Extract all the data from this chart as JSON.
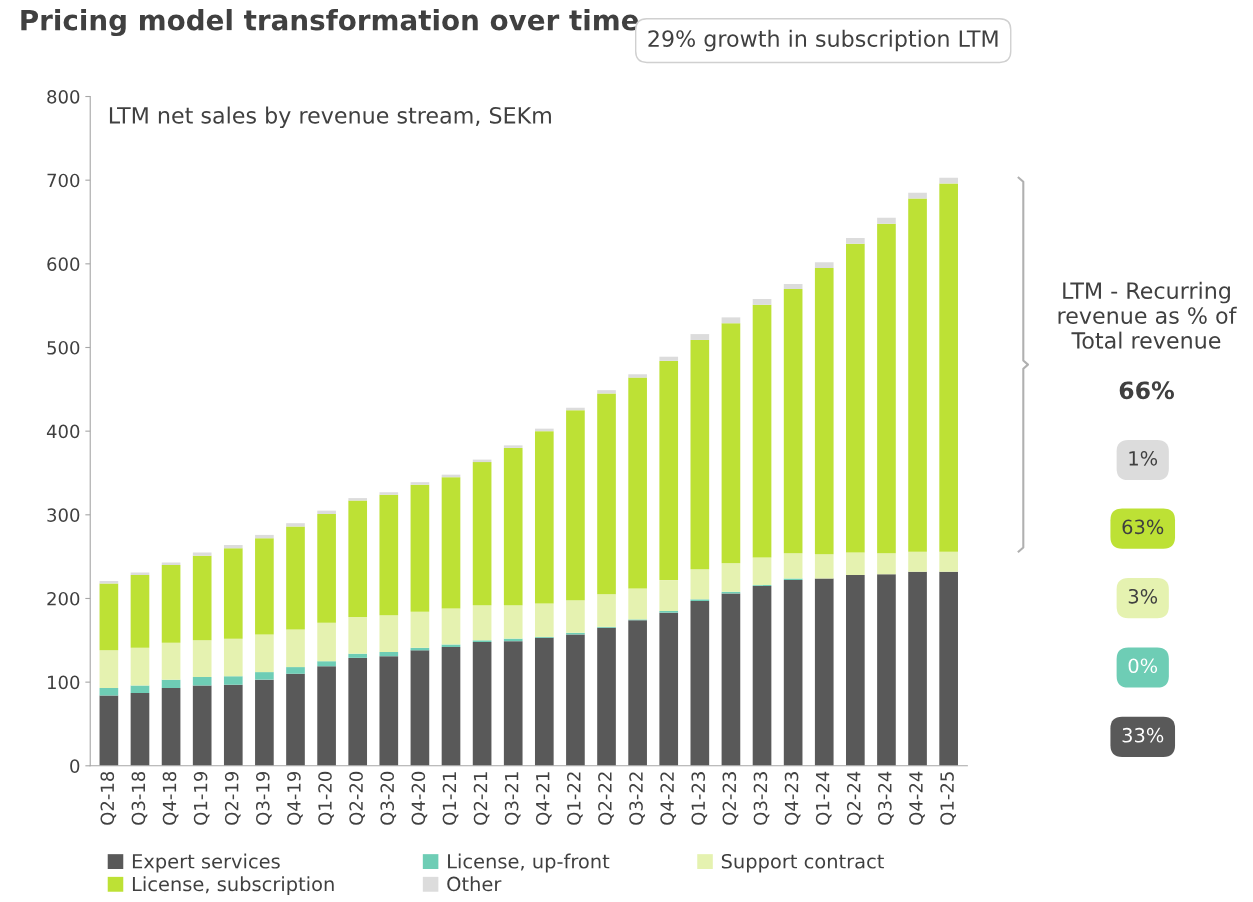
{
  "chart_data": {
    "type": "bar",
    "stacked": true,
    "title": "Pricing model transformation over time",
    "subtitle": "LTM net sales by revenue stream, SEKm",
    "categories": [
      "Q2-18",
      "Q3-18",
      "Q4-18",
      "Q1-19",
      "Q2-19",
      "Q3-19",
      "Q4-19",
      "Q1-20",
      "Q2-20",
      "Q3-20",
      "Q4-20",
      "Q1-21",
      "Q2-21",
      "Q3-21",
      "Q4-21",
      "Q1-22",
      "Q2-22",
      "Q3-22",
      "Q4-22",
      "Q1-23",
      "Q2-23",
      "Q3-23",
      "Q4-23",
      "Q1-24",
      "Q2-24",
      "Q3-24",
      "Q4-24",
      "Q1-25"
    ],
    "series": [
      {
        "name": "Expert services",
        "color": "#595959",
        "values": [
          84,
          87,
          93,
          96,
          97,
          103,
          110,
          119,
          129,
          131,
          138,
          142,
          148,
          149,
          153,
          157,
          165,
          174,
          183,
          197,
          206,
          215,
          222,
          224,
          228,
          229,
          232,
          232
        ]
      },
      {
        "name": "License, up-front",
        "color": "#6ecdb5",
        "values": [
          9,
          9,
          10,
          10,
          10,
          9,
          8,
          6,
          5,
          5,
          3,
          3,
          2,
          3,
          1,
          2,
          1,
          1,
          2,
          2,
          2,
          1,
          2,
          0,
          0,
          0,
          0,
          0
        ]
      },
      {
        "name": "Support contract",
        "color": "#e5f2b0",
        "values": [
          45,
          45,
          44,
          44,
          45,
          45,
          45,
          46,
          44,
          44,
          43,
          43,
          42,
          40,
          40,
          39,
          39,
          37,
          37,
          36,
          34,
          33,
          30,
          29,
          27,
          25,
          24,
          24
        ]
      },
      {
        "name": "License, subscription",
        "color": "#bde135",
        "values": [
          80,
          87,
          93,
          101,
          108,
          115,
          123,
          130,
          139,
          144,
          152,
          157,
          171,
          188,
          206,
          227,
          240,
          252,
          262,
          274,
          287,
          302,
          316,
          342,
          369,
          394,
          422,
          440
        ]
      },
      {
        "name": "Other",
        "color": "#dcdcdc",
        "values": [
          3,
          3,
          3,
          4,
          4,
          4,
          4,
          4,
          3,
          3,
          3,
          3,
          3,
          3,
          3,
          3,
          4,
          4,
          5,
          7,
          7,
          7,
          6,
          7,
          7,
          7,
          7,
          7
        ]
      }
    ],
    "ylim": [
      0,
      800
    ],
    "yticks": [
      0,
      100,
      200,
      300,
      400,
      500,
      600,
      700,
      800
    ],
    "grid": false,
    "legend": "bottom",
    "annotations": [
      "29% growth in subscription LTM",
      "LTM - Recurring revenue as % of Total revenue",
      "66%",
      "1%",
      "63%",
      "3%",
      "0%",
      "33%"
    ]
  }
}
